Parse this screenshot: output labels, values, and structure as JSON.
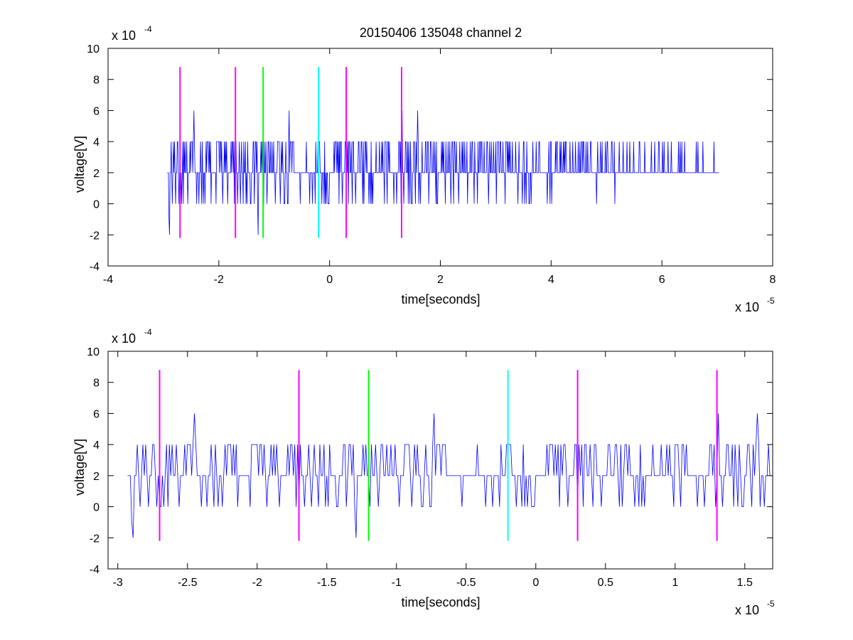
{
  "chart_data": [
    {
      "type": "line",
      "title": "20150406 135048 channel 2",
      "xlabel": "time[seconds]",
      "ylabel": "voltage[V]",
      "x_exponent": {
        "base": "x 10",
        "power": "-5"
      },
      "y_exponent": {
        "base": "x 10",
        "power": "-4"
      },
      "xlim": [
        -4,
        8
      ],
      "ylim": [
        -4,
        10
      ],
      "xticks": [
        "-4",
        "-2",
        "0",
        "2",
        "4",
        "6",
        "8"
      ],
      "yticks": [
        "-4",
        "-2",
        "0",
        "2",
        "4",
        "6",
        "8",
        "10"
      ],
      "grid": false,
      "series": [
        {
          "color": "#0000ff",
          "x_range": [
            -2.93,
            7.03
          ],
          "samples": 1000,
          "values_from": "signal"
        }
      ],
      "markers": [
        {
          "x": -2.7,
          "color": "#ff00ff"
        },
        {
          "x": -1.7,
          "color": "#ff00ff"
        },
        {
          "x": -1.2,
          "color": "#00ff00"
        },
        {
          "x": -0.2,
          "color": "#00ffff"
        },
        {
          "x": 0.3,
          "color": "#ff00ff"
        },
        {
          "x": 1.3,
          "color": "#ff00ff"
        }
      ],
      "marker_y_range": [
        -2.2,
        8.8
      ]
    },
    {
      "type": "line",
      "title": "",
      "xlabel": "time[seconds]",
      "ylabel": "voltage[V]",
      "x_exponent": {
        "base": "x 10",
        "power": "-5"
      },
      "y_exponent": {
        "base": "x 10",
        "power": "-4"
      },
      "xlim": [
        -3.07,
        1.7
      ],
      "ylim": [
        -4,
        10
      ],
      "xticks": [
        "-3",
        "-2.5",
        "-2",
        "-1.5",
        "-1",
        "-0.5",
        "0",
        "0.5",
        "1",
        "1.5"
      ],
      "yticks": [
        "-4",
        "-2",
        "0",
        "2",
        "4",
        "6",
        "8",
        "10"
      ],
      "grid": false,
      "series": [
        {
          "color": "#0000ff",
          "x_range": [
            -2.93,
            1.7
          ],
          "samples": 463,
          "values_from": "signal"
        }
      ],
      "markers": [
        {
          "x": -2.7,
          "color": "#ff00ff"
        },
        {
          "x": -1.7,
          "color": "#ff00ff"
        },
        {
          "x": -1.2,
          "color": "#00ff00"
        },
        {
          "x": -0.2,
          "color": "#00ffff"
        },
        {
          "x": 0.3,
          "color": "#ff00ff"
        },
        {
          "x": 1.3,
          "color": "#ff00ff"
        }
      ],
      "marker_y_range": [
        -2.2,
        8.8
      ]
    }
  ],
  "signal": {
    "x_start": -2.93,
    "x_step": 0.01,
    "values": [
      2,
      2,
      2,
      -1,
      -2,
      2,
      2,
      4,
      2,
      0,
      2,
      4,
      2,
      4,
      2,
      0,
      2,
      2,
      4,
      4,
      2,
      0,
      2,
      0,
      0,
      2,
      0,
      2,
      4,
      0,
      4,
      2,
      4,
      2,
      2,
      4,
      2,
      0,
      2,
      2,
      2,
      4,
      2,
      4,
      4,
      4,
      2,
      4,
      6,
      4,
      2,
      2,
      2,
      0,
      2,
      2,
      2,
      0,
      2,
      2,
      4,
      2,
      0,
      4,
      2,
      0,
      2,
      2,
      0,
      2,
      4,
      2,
      4,
      4,
      4,
      2,
      4,
      2,
      4,
      0,
      2,
      2,
      2,
      2,
      2,
      2,
      2,
      2,
      0,
      4,
      4,
      4,
      4,
      4,
      2,
      4,
      4,
      2,
      4,
      2,
      0,
      2,
      2,
      4,
      2,
      4,
      2,
      4,
      2,
      0,
      2,
      2,
      2,
      2,
      2,
      4,
      2,
      4,
      4,
      2,
      4,
      0,
      4,
      0,
      4,
      2,
      2,
      0,
      2,
      2,
      4,
      2,
      0,
      2,
      4,
      2,
      2,
      0,
      4,
      2,
      2,
      4,
      0,
      2,
      0,
      4,
      2,
      2,
      2,
      2,
      0,
      0,
      2,
      2,
      2,
      4,
      4,
      0,
      2,
      4,
      4,
      2,
      4,
      0,
      -2,
      2,
      2,
      2,
      2,
      4,
      2,
      4,
      2,
      2,
      0,
      4,
      2,
      2,
      4,
      2,
      0,
      2,
      4,
      4,
      2,
      2,
      4,
      2,
      2,
      4,
      2,
      2,
      4,
      2,
      2,
      0,
      2,
      2,
      2,
      4,
      4,
      4,
      4,
      2,
      0,
      2,
      4,
      2,
      4,
      2,
      2,
      0,
      0,
      2,
      4,
      2,
      2,
      0,
      0,
      4,
      6,
      2,
      4,
      4,
      4,
      2,
      4,
      4,
      4,
      2,
      2,
      2,
      2,
      2,
      2,
      2,
      2,
      2,
      2,
      2,
      0,
      2,
      2,
      2,
      2,
      2,
      2,
      2,
      2,
      2,
      2,
      4,
      2,
      2,
      2,
      2,
      2,
      0,
      2,
      2,
      2,
      2,
      0,
      2,
      2,
      2,
      2,
      0,
      4,
      2,
      2,
      2,
      4,
      4,
      4,
      4,
      2,
      2,
      2,
      0,
      2,
      2,
      2,
      0,
      4,
      0,
      2,
      0,
      2,
      2,
      0,
      0,
      0,
      2,
      2,
      2,
      2,
      2,
      2,
      2,
      2,
      4,
      2,
      4,
      4,
      4,
      2,
      4,
      2,
      4,
      0,
      4,
      2,
      4,
      4,
      2,
      0,
      2,
      2,
      2,
      2,
      4,
      4,
      0,
      4,
      2,
      4,
      0,
      4,
      4,
      2,
      2,
      4,
      2,
      0,
      4,
      4,
      2,
      2,
      2,
      0,
      2,
      2,
      2,
      2,
      4,
      4,
      2,
      2,
      2,
      4,
      4,
      2,
      0,
      4,
      0,
      2,
      4,
      4,
      2,
      4,
      2,
      2,
      2,
      0,
      2,
      2,
      0,
      4,
      0,
      2,
      0,
      2,
      2,
      2,
      2,
      2,
      4,
      2,
      2,
      2,
      2,
      2,
      4,
      2,
      2,
      2,
      4,
      2,
      4,
      2,
      2,
      0,
      4,
      4,
      4,
      2,
      0,
      4,
      4,
      2,
      4,
      2,
      2,
      2,
      2,
      2,
      2,
      2,
      0,
      2,
      2,
      2,
      2,
      0,
      2,
      2,
      2,
      4,
      4,
      2,
      4,
      0,
      2,
      6,
      2,
      2,
      0,
      2,
      2,
      4,
      4,
      2,
      2,
      4,
      0,
      4,
      2,
      0,
      4,
      2,
      0,
      0,
      2,
      2,
      4,
      4,
      2,
      0,
      4,
      2,
      4,
      6,
      4,
      0,
      2,
      2,
      0,
      2,
      2,
      4,
      2,
      2,
      2,
      2,
      2,
      4,
      4,
      2,
      2,
      4,
      4,
      0,
      2,
      2,
      4,
      4,
      2,
      2,
      2,
      4,
      2,
      2,
      4,
      2,
      0,
      4,
      0,
      0,
      2,
      2,
      2,
      2,
      2,
      2,
      4,
      2,
      4,
      2,
      4,
      2,
      2,
      0,
      4,
      2,
      2,
      2,
      4,
      2,
      2,
      4,
      2,
      0,
      2,
      4,
      4,
      2,
      0,
      4,
      4,
      2,
      2,
      4,
      2,
      2,
      2,
      0,
      2,
      4,
      2,
      2,
      2,
      4,
      2,
      4,
      2,
      2,
      4,
      2,
      2,
      2,
      4,
      0,
      2,
      2,
      2,
      2,
      4,
      2,
      2,
      4,
      4,
      2,
      2,
      0,
      4,
      2,
      2,
      2,
      2,
      0,
      4,
      2,
      2,
      4,
      4,
      2,
      4,
      4,
      2,
      2,
      2,
      4,
      2,
      2,
      2,
      2,
      4,
      4,
      2,
      0,
      2,
      4,
      2,
      2,
      4,
      2,
      2,
      2,
      4,
      2,
      2,
      2,
      4,
      0,
      2,
      4,
      4,
      4,
      2,
      2,
      4,
      4,
      2,
      2,
      2,
      4,
      2,
      2,
      2,
      0,
      4,
      4,
      4,
      2,
      4,
      2,
      4,
      2,
      4,
      2,
      2,
      2,
      4,
      2,
      2,
      2,
      2,
      2,
      4,
      2,
      2,
      2,
      0,
      2,
      4,
      2,
      2,
      2,
      2,
      2,
      0,
      2,
      4,
      4,
      0,
      2,
      2,
      0,
      4,
      2,
      2,
      2,
      0,
      0,
      2,
      2,
      0,
      2,
      2,
      4,
      2,
      2,
      2,
      2,
      2,
      4,
      2,
      2,
      2,
      2,
      4,
      4,
      2,
      2,
      2,
      2,
      2,
      2,
      2,
      2,
      2,
      2,
      2,
      2,
      2,
      0,
      2,
      2,
      4,
      2,
      0,
      4,
      4,
      0,
      2,
      2,
      2,
      2,
      2,
      2,
      4,
      2,
      4,
      4,
      2,
      2,
      2,
      2,
      4,
      2,
      4,
      2,
      2,
      2,
      4,
      2,
      4,
      2,
      4,
      4,
      2,
      2,
      2,
      2,
      2,
      2,
      4,
      2,
      2,
      2,
      2,
      4,
      2,
      2,
      2,
      2,
      4,
      2,
      2,
      2,
      2,
      4,
      2,
      2,
      4,
      2,
      2,
      4,
      4,
      2,
      4,
      4,
      2,
      2,
      2,
      4,
      2,
      2,
      4,
      2,
      2,
      2,
      2,
      4,
      4,
      2,
      2,
      2,
      2,
      2,
      2,
      2,
      2,
      2,
      0,
      2,
      4,
      2,
      2,
      2,
      2,
      4,
      2,
      2,
      4,
      2,
      2,
      2,
      2,
      2,
      4,
      2,
      2,
      4,
      4,
      2,
      2,
      2,
      2,
      2,
      2,
      4,
      4,
      2,
      2,
      2,
      4,
      0,
      2,
      2,
      2,
      2,
      2,
      2,
      2,
      4,
      2,
      2,
      2,
      2,
      2,
      2,
      4,
      2,
      2,
      2,
      2,
      2,
      2,
      4,
      2,
      2,
      2,
      2,
      4,
      2,
      2,
      2,
      2,
      2,
      2,
      4,
      2,
      2,
      2,
      2,
      2,
      2,
      2,
      2,
      2,
      4,
      4,
      2,
      2,
      2,
      2,
      2,
      2,
      2,
      2,
      4,
      2,
      2,
      2,
      2,
      2,
      2,
      2,
      2,
      2,
      2,
      2,
      4,
      2,
      2,
      2,
      2,
      2,
      4,
      2,
      2,
      2,
      2,
      2,
      2,
      4,
      4,
      2,
      2,
      2,
      2,
      2,
      4,
      2,
      2,
      4,
      2,
      2,
      2,
      2,
      2,
      2,
      4,
      2,
      2,
      2,
      2,
      2,
      4,
      2,
      2,
      2,
      2,
      2,
      2,
      2,
      2,
      2,
      2,
      2,
      2,
      4,
      2,
      2,
      4,
      2,
      2,
      4,
      2,
      2,
      2,
      2,
      4,
      2,
      2,
      2,
      2,
      2,
      2,
      2,
      2,
      2,
      2,
      2,
      2,
      2,
      2,
      2,
      2,
      2,
      2,
      2,
      2,
      4,
      2,
      2,
      4,
      2,
      2,
      2,
      2,
      2,
      2,
      2,
      2,
      4,
      2,
      2,
      2,
      2,
      2,
      2,
      2,
      2,
      2,
      2,
      2,
      2,
      2,
      2,
      2,
      2,
      2,
      2,
      2,
      4,
      2,
      2,
      2,
      2,
      2,
      2,
      2,
      2,
      2,
      2,
      2,
      4,
      2,
      2,
      2,
      2,
      2,
      2,
      2,
      2,
      2,
      2,
      2
    ]
  }
}
